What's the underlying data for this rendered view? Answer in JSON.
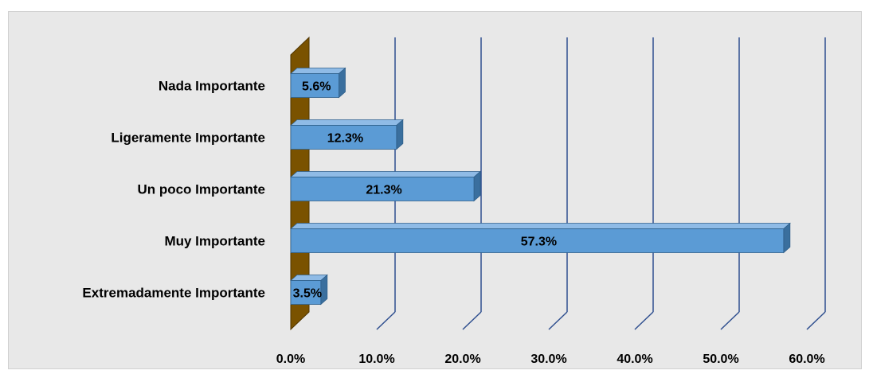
{
  "chart_data": {
    "type": "bar",
    "orientation": "horizontal",
    "three_d": true,
    "categories": [
      "Nada Importante",
      "Ligeramente Importante",
      "Un poco Importante",
      "Muy Importante",
      "Extremadamente Importante"
    ],
    "values": [
      5.6,
      12.3,
      21.3,
      57.3,
      3.5
    ],
    "data_labels": [
      "5.6%",
      "12.3%",
      "21.3%",
      "57.3%",
      "3.5%"
    ],
    "x_ticks": [
      "0.0%",
      "10.0%",
      "20.0%",
      "30.0%",
      "40.0%",
      "50.0%",
      "60.0%"
    ],
    "xlim": [
      0,
      60
    ],
    "grid": true,
    "legend": "none",
    "title": "",
    "xlabel": "",
    "ylabel": "",
    "colors": {
      "bar_front": "#5b9bd5",
      "bar_top": "#8fbbe6",
      "bar_side": "#3a6f9e",
      "bar_edge": "#2f5f8a",
      "wall": "#7a5200",
      "gridline": "#2f4f8f",
      "background": "#e8e8e8"
    }
  }
}
